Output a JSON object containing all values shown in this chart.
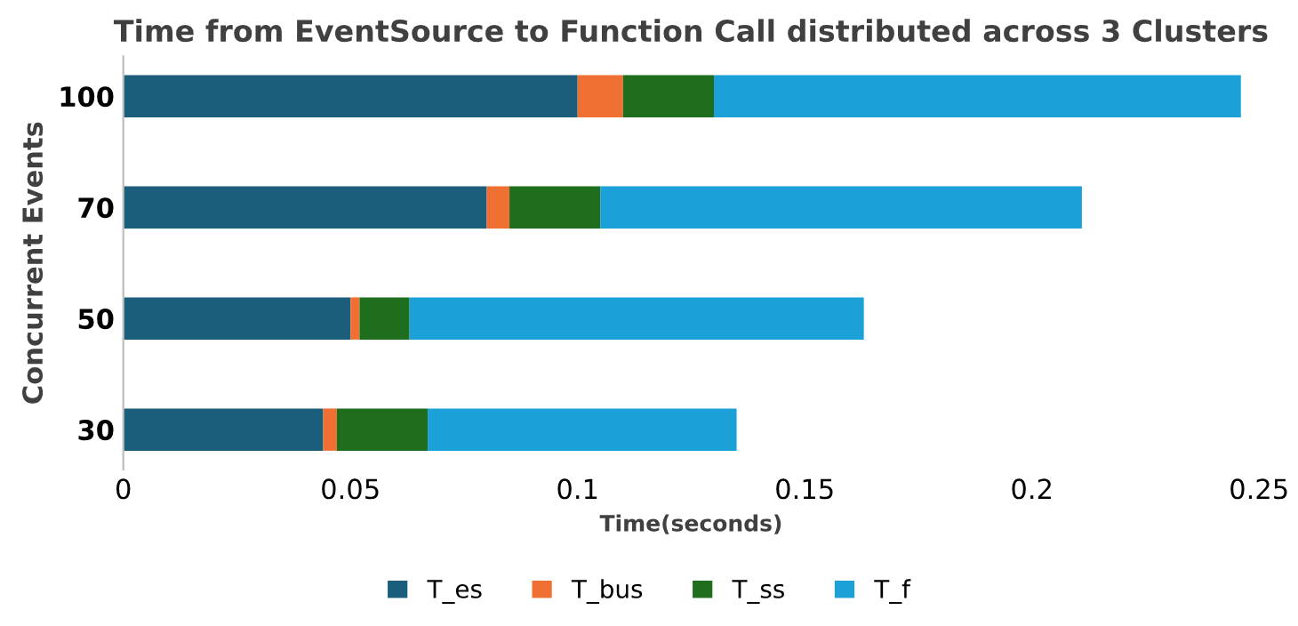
{
  "chart_data": {
    "type": "bar",
    "orientation": "horizontal",
    "stacked": true,
    "title": "Time from EventSource to Function Call distributed across 3 Clusters",
    "xlabel": "Time(seconds)",
    "ylabel": "Concurrent Events",
    "categories": [
      "100",
      "70",
      "50",
      "30"
    ],
    "series": [
      {
        "name": "T_es",
        "color": "#1b5e7b",
        "values": [
          0.1,
          0.08,
          0.05,
          0.044
        ]
      },
      {
        "name": "T_bus",
        "color": "#f07033",
        "values": [
          0.01,
          0.005,
          0.002,
          0.003
        ]
      },
      {
        "name": "T_ss",
        "color": "#1e6e1e",
        "values": [
          0.02,
          0.02,
          0.011,
          0.02
        ]
      },
      {
        "name": "T_f",
        "color": "#1ba0d8",
        "values": [
          0.116,
          0.106,
          0.1,
          0.068
        ]
      }
    ],
    "xlim": [
      0,
      0.25
    ],
    "xticks": [
      0,
      0.05,
      0.1,
      0.15,
      0.2,
      0.25
    ],
    "grid": false,
    "legend": "bottom"
  }
}
